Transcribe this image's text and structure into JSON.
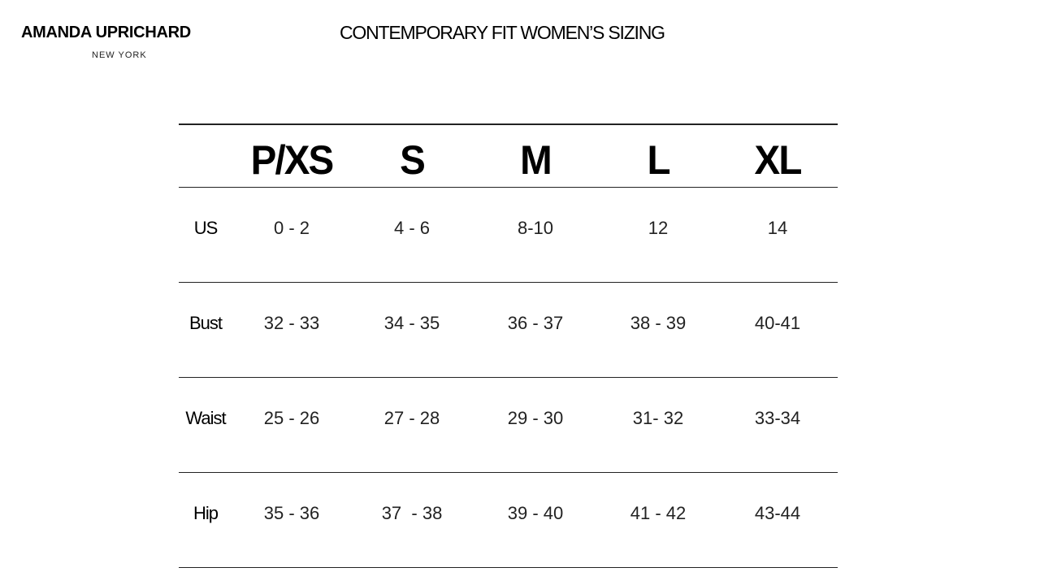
{
  "brand": {
    "name": "AMANDA UPRICHARD",
    "location": "NEW YORK"
  },
  "title": "CONTEMPORARY FIT WOMEN’S SIZING",
  "table": {
    "columns": [
      "P/XS",
      "S",
      "M",
      "L",
      "XL"
    ],
    "rows": [
      {
        "label": "US",
        "values": [
          "0 - 2",
          "4 - 6",
          "8-10",
          "12",
          "14"
        ]
      },
      {
        "label": "Bust",
        "values": [
          "32 - 33",
          "34 - 35",
          "36 - 37",
          "38 - 39",
          "40-41"
        ]
      },
      {
        "label": "Waist",
        "values": [
          "25 - 26",
          "27 - 28",
          "29 - 30",
          "31- 32",
          "33-34"
        ]
      },
      {
        "label": "Hip",
        "values": [
          "35 - 36",
          "37  - 38",
          "39 - 40",
          "41 - 42",
          "43-44"
        ]
      }
    ]
  }
}
